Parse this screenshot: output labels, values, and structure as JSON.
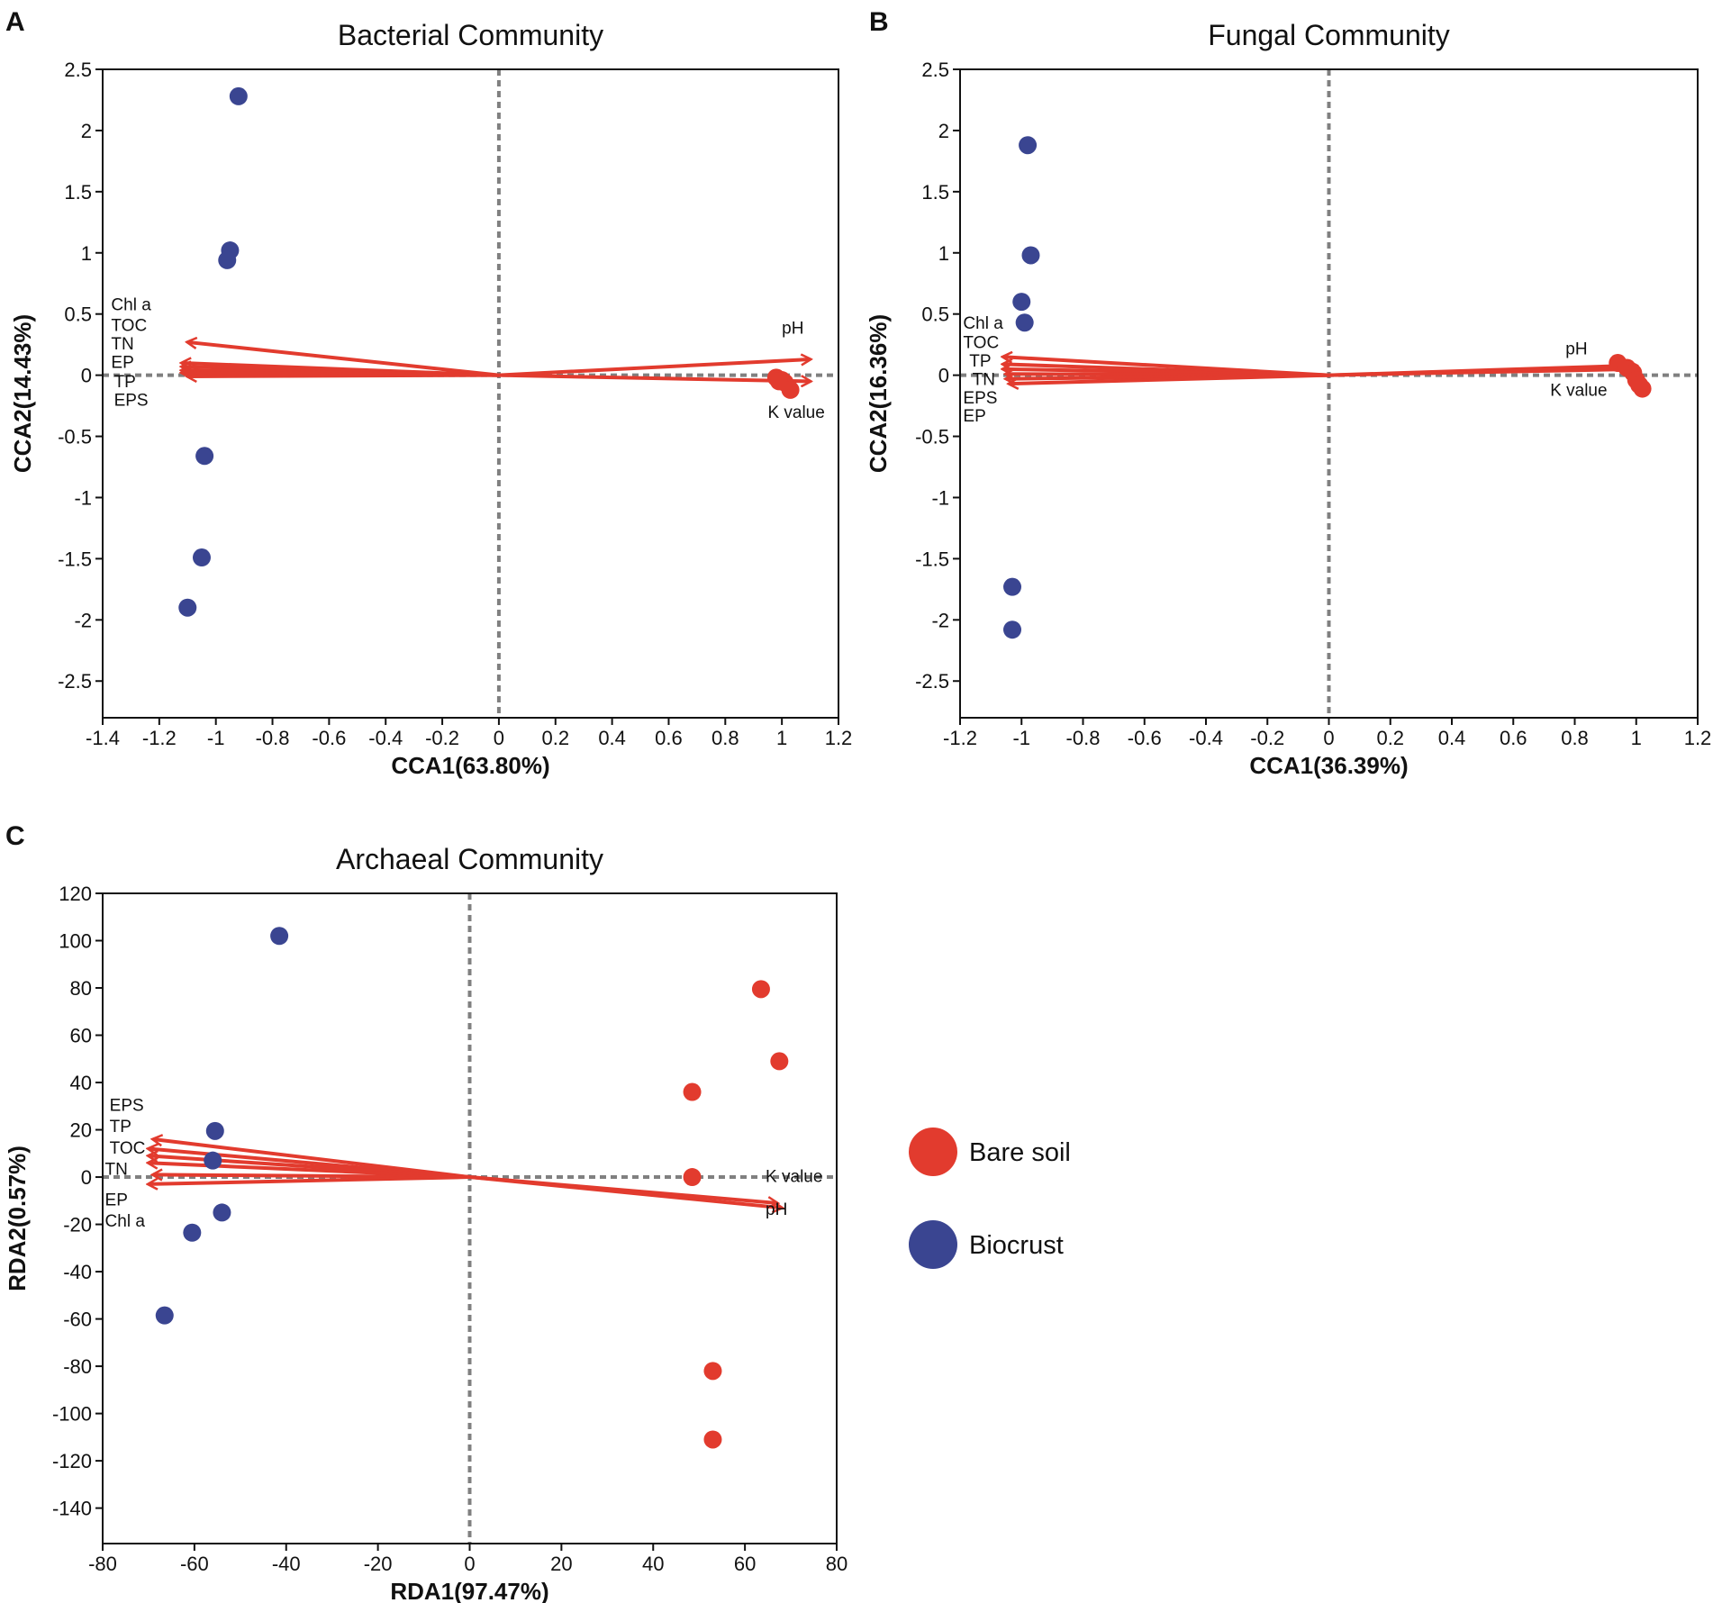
{
  "colors": {
    "bare_soil": "#e23b2e",
    "biocrust": "#3a4591",
    "arrow": "#e23b2e",
    "zero_line": "#808080",
    "axes": "#111111"
  },
  "legend": [
    {
      "label": "Bare soil",
      "color": "#e23b2e"
    },
    {
      "label": "Biocrust",
      "color": "#3a4591"
    }
  ],
  "chart_data": [
    {
      "panel": "A",
      "type": "scatter",
      "title": "Bacterial Community",
      "xlabel": "CCA1(63.80%)",
      "ylabel": "CCA2(14.43%)",
      "xlim": [
        -1.4,
        1.2
      ],
      "ylim": [
        -2.8,
        2.5
      ],
      "xticks": [
        "-1.4",
        "-1.2",
        "-1",
        "-0.8",
        "-0.6",
        "-0.4",
        "-0.2",
        "0",
        "0.2",
        "0.4",
        "0.6",
        "0.8",
        "1",
        "1.2"
      ],
      "xtick_values": [
        -1.4,
        -1.2,
        -1,
        -0.8,
        -0.6,
        -0.4,
        -0.2,
        0,
        0.2,
        0.4,
        0.6,
        0.8,
        1,
        1.2
      ],
      "yticks": [
        "2.5",
        "2",
        "1.5",
        "1",
        "0.5",
        "0",
        "-0.5",
        "-1",
        "-1.5",
        "-2",
        "-2.5"
      ],
      "ytick_values": [
        2.5,
        2,
        1.5,
        1,
        0.5,
        0,
        -0.5,
        -1,
        -1.5,
        -2,
        -2.5
      ],
      "series": [
        {
          "name": "Biocrust",
          "points": [
            [
              -0.92,
              2.28
            ],
            [
              -0.95,
              1.02
            ],
            [
              -0.96,
              0.94
            ],
            [
              -1.04,
              -0.66
            ],
            [
              -1.05,
              -1.49
            ],
            [
              -1.1,
              -1.9
            ]
          ]
        },
        {
          "name": "Bare soil",
          "points": [
            [
              0.98,
              -0.02
            ],
            [
              1.0,
              -0.04
            ],
            [
              1.01,
              -0.06
            ],
            [
              0.99,
              -0.05
            ],
            [
              1.03,
              -0.12
            ]
          ]
        }
      ],
      "arrows": [
        {
          "name": "pH",
          "end": [
            1.1,
            0.13
          ]
        },
        {
          "name": "K value",
          "end": [
            1.1,
            -0.05
          ]
        },
        {
          "name": "Chl a",
          "end": [
            -1.1,
            0.27
          ]
        },
        {
          "name": "TOC",
          "end": [
            -1.12,
            0.1
          ]
        },
        {
          "name": "TN",
          "end": [
            -1.12,
            0.07
          ]
        },
        {
          "name": "EP",
          "end": [
            -1.12,
            0.04
          ]
        },
        {
          "name": "TP",
          "end": [
            -1.12,
            0.02
          ]
        },
        {
          "name": "EPS",
          "end": [
            -1.1,
            -0.01
          ]
        }
      ],
      "labels": [
        {
          "text": "Chl a",
          "at": [
            -1.37,
            0.53
          ]
        },
        {
          "text": "TOC",
          "at": [
            -1.37,
            0.36
          ]
        },
        {
          "text": "TN",
          "at": [
            -1.37,
            0.21
          ]
        },
        {
          "text": "EP",
          "at": [
            -1.37,
            0.06
          ]
        },
        {
          "text": "TP",
          "at": [
            -1.36,
            -0.1
          ]
        },
        {
          "text": "EPS",
          "at": [
            -1.36,
            -0.25
          ]
        },
        {
          "text": "pH",
          "at": [
            1.0,
            0.34
          ]
        },
        {
          "text": "K value",
          "at": [
            0.95,
            -0.35
          ]
        }
      ]
    },
    {
      "panel": "B",
      "type": "scatter",
      "title": "Fungal Community",
      "xlabel": "CCA1(36.39%)",
      "ylabel": "CCA2(16.36%)",
      "xlim": [
        -1.2,
        1.2
      ],
      "ylim": [
        -2.8,
        2.5
      ],
      "xticks": [
        "-1.2",
        "-1",
        "-0.8",
        "-0.6",
        "-0.4",
        "-0.2",
        "0",
        "0.2",
        "0.4",
        "0.6",
        "0.8",
        "1",
        "1.2"
      ],
      "xtick_values": [
        -1.2,
        -1,
        -0.8,
        -0.6,
        -0.4,
        -0.2,
        0,
        0.2,
        0.4,
        0.6,
        0.8,
        1,
        1.2
      ],
      "yticks": [
        "2.5",
        "2",
        "1.5",
        "1",
        "0.5",
        "0",
        "-0.5",
        "-1",
        "-1.5",
        "-2",
        "-2.5"
      ],
      "ytick_values": [
        2.5,
        2,
        1.5,
        1,
        0.5,
        0,
        -0.5,
        -1,
        -1.5,
        -2,
        -2.5
      ],
      "series": [
        {
          "name": "Biocrust",
          "points": [
            [
              -0.98,
              1.88
            ],
            [
              -0.97,
              0.98
            ],
            [
              -1.0,
              0.6
            ],
            [
              -0.99,
              0.43
            ],
            [
              -1.03,
              -1.73
            ],
            [
              -1.03,
              -2.08
            ]
          ]
        },
        {
          "name": "Bare soil",
          "points": [
            [
              0.94,
              0.1
            ],
            [
              0.97,
              0.06
            ],
            [
              0.99,
              0.02
            ],
            [
              1.0,
              -0.04
            ],
            [
              1.01,
              -0.08
            ],
            [
              1.02,
              -0.11
            ]
          ]
        }
      ],
      "arrows": [
        {
          "name": "pH",
          "end": [
            1.0,
            0.08
          ]
        },
        {
          "name": "K value",
          "end": [
            1.0,
            0.05
          ]
        },
        {
          "name": "Chl a",
          "end": [
            -1.06,
            0.15
          ]
        },
        {
          "name": "TOC",
          "end": [
            -1.06,
            0.09
          ]
        },
        {
          "name": "TP",
          "end": [
            -1.06,
            0.05
          ]
        },
        {
          "name": "TN",
          "end": [
            -1.05,
            0.01
          ]
        },
        {
          "name": "EPS",
          "end": [
            -1.05,
            -0.03
          ]
        },
        {
          "name": "EP",
          "end": [
            -1.04,
            -0.07
          ]
        }
      ],
      "labels": [
        {
          "text": "Chl a",
          "at": [
            -1.19,
            0.38
          ]
        },
        {
          "text": "TOC",
          "at": [
            -1.19,
            0.22
          ]
        },
        {
          "text": "TP",
          "at": [
            -1.17,
            0.07
          ]
        },
        {
          "text": "TN",
          "at": [
            -1.16,
            -0.08
          ]
        },
        {
          "text": "EPS",
          "at": [
            -1.19,
            -0.23
          ]
        },
        {
          "text": "EP",
          "at": [
            -1.19,
            -0.38
          ]
        },
        {
          "text": "pH",
          "at": [
            0.77,
            0.17
          ]
        },
        {
          "text": "K value",
          "at": [
            0.72,
            -0.17
          ]
        }
      ]
    },
    {
      "panel": "C",
      "type": "scatter",
      "title": "Archaeal Community",
      "xlabel": "RDA1(97.47%)",
      "ylabel": "RDA2(0.57%)",
      "xlim": [
        -80,
        80
      ],
      "ylim": [
        -155,
        120
      ],
      "xticks": [
        "-80",
        "-60",
        "-40",
        "-20",
        "0",
        "20",
        "40",
        "60",
        "80"
      ],
      "xtick_values": [
        -80,
        -60,
        -40,
        -20,
        0,
        20,
        40,
        60,
        80
      ],
      "yticks": [
        "120",
        "100",
        "80",
        "60",
        "40",
        "20",
        "0",
        "-20",
        "-40",
        "-60",
        "-80",
        "-100",
        "-120",
        "-140"
      ],
      "ytick_values": [
        120,
        100,
        80,
        60,
        40,
        20,
        0,
        -20,
        -40,
        -60,
        -80,
        -100,
        -120,
        -140
      ],
      "series": [
        {
          "name": "Biocrust",
          "points": [
            [
              -41.5,
              102
            ],
            [
              -55.5,
              19.5
            ],
            [
              -56,
              7
            ],
            [
              -54,
              -15
            ],
            [
              -60.5,
              -23.5
            ],
            [
              -66.5,
              -58.5
            ]
          ]
        },
        {
          "name": "Bare soil",
          "points": [
            [
              63.5,
              79.5
            ],
            [
              67.5,
              49
            ],
            [
              48.5,
              36
            ],
            [
              48.5,
              0
            ],
            [
              53,
              -82
            ],
            [
              53,
              -111
            ]
          ]
        }
      ],
      "arrows": [
        {
          "name": "K value",
          "end": [
            67,
            -11
          ]
        },
        {
          "name": "pH",
          "end": [
            68,
            -13
          ]
        },
        {
          "name": "EPS",
          "end": [
            -69,
            16
          ]
        },
        {
          "name": "TP",
          "end": [
            -70,
            12
          ]
        },
        {
          "name": "TOC",
          "end": [
            -70,
            9
          ]
        },
        {
          "name": "TN",
          "end": [
            -70,
            6
          ]
        },
        {
          "name": "EP",
          "end": [
            -69,
            1
          ]
        },
        {
          "name": "Chl a",
          "end": [
            -70,
            -3
          ]
        }
      ],
      "labels": [
        {
          "text": "EPS",
          "at": [
            -78.5,
            28
          ]
        },
        {
          "text": "TP",
          "at": [
            -78.5,
            19
          ]
        },
        {
          "text": "TOC",
          "at": [
            -78.5,
            10
          ]
        },
        {
          "text": "TN",
          "at": [
            -79.5,
            1
          ]
        },
        {
          "text": "EP",
          "at": [
            -79.5,
            -12
          ]
        },
        {
          "text": "Chl a",
          "at": [
            -79.5,
            -21
          ]
        },
        {
          "text": "K value",
          "at": [
            64.5,
            -2
          ]
        },
        {
          "text": "pH",
          "at": [
            64.5,
            -16
          ]
        }
      ]
    }
  ]
}
